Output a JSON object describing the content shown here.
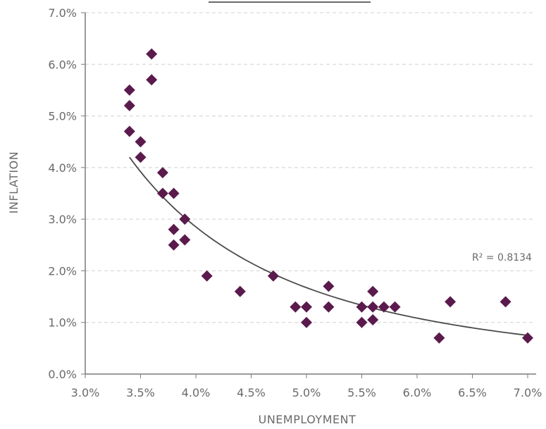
{
  "chart_data": {
    "type": "scatter",
    "xlabel": "UNEMPLOYMENT",
    "ylabel": "INFLATION",
    "xlim": [
      3.0,
      7.0
    ],
    "ylim": [
      0.0,
      7.0
    ],
    "x_ticks": [
      "3.0%",
      "3.5%",
      "4.0%",
      "4.5%",
      "5.0%",
      "5.5%",
      "6.0%",
      "6.5%",
      "7.0%"
    ],
    "y_ticks": [
      "0.0%",
      "1.0%",
      "2.0%",
      "3.0%",
      "4.0%",
      "5.0%",
      "6.0%",
      "7.0%"
    ],
    "grid": "horizontal dashed",
    "marker": "diamond",
    "marker_color": "#5a1a4c",
    "trendline_color": "#4a4a4a",
    "annotation": "R² = 0.8134",
    "series": [
      {
        "points": [
          [
            3.4,
            5.5
          ],
          [
            3.4,
            5.2
          ],
          [
            3.4,
            4.7
          ],
          [
            3.5,
            4.5
          ],
          [
            3.5,
            4.2
          ],
          [
            3.6,
            6.2
          ],
          [
            3.6,
            5.7
          ],
          [
            3.7,
            3.9
          ],
          [
            3.7,
            3.5
          ],
          [
            3.8,
            3.5
          ],
          [
            3.8,
            2.8
          ],
          [
            3.8,
            2.5
          ],
          [
            3.9,
            3.0
          ],
          [
            3.9,
            2.6
          ],
          [
            4.1,
            1.9
          ],
          [
            4.4,
            1.6
          ],
          [
            4.7,
            1.9
          ],
          [
            4.9,
            1.3
          ],
          [
            5.0,
            1.3
          ],
          [
            5.0,
            1.0
          ],
          [
            5.2,
            1.7
          ],
          [
            5.2,
            1.3
          ],
          [
            5.5,
            1.3
          ],
          [
            5.5,
            1.0
          ],
          [
            5.6,
            1.6
          ],
          [
            5.6,
            1.3
          ],
          [
            5.6,
            1.05
          ],
          [
            5.7,
            1.3
          ],
          [
            5.8,
            1.3
          ],
          [
            6.2,
            0.7
          ],
          [
            6.3,
            1.4
          ],
          [
            6.8,
            1.4
          ],
          [
            7.0,
            0.7
          ]
        ]
      }
    ],
    "trendline": {
      "type": "power",
      "x_range": [
        3.4,
        7.0
      ],
      "y_at_start": 4.2,
      "y_at_end": 0.75
    }
  }
}
